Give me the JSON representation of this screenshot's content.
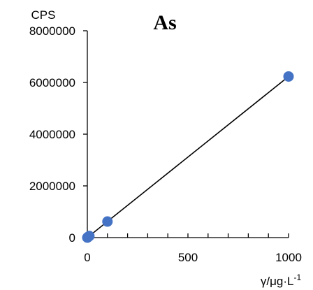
{
  "chart_data": {
    "type": "scatter",
    "title": "As",
    "ylabel": "CPS",
    "xlabel": "γ/μg·L⁻¹",
    "xlabel_parts": {
      "main": "γ/μg·L",
      "sup": "-1"
    },
    "xlim": [
      0,
      1000
    ],
    "ylim": [
      0,
      8000000
    ],
    "xticks": [
      0,
      500,
      1000
    ],
    "xtick_labels": [
      "0",
      "500",
      "1000"
    ],
    "yticks": [
      0,
      2000000,
      4000000,
      6000000,
      8000000
    ],
    "ytick_labels": [
      "0",
      "2000000",
      "4000000",
      "6000000",
      "8000000"
    ],
    "grid": false,
    "series": [
      {
        "points": [
          {
            "x": 0,
            "y": 0
          },
          {
            "x": 1,
            "y": 6000
          },
          {
            "x": 5,
            "y": 31000
          },
          {
            "x": 10,
            "y": 62000
          },
          {
            "x": 100,
            "y": 620000
          },
          {
            "x": 1000,
            "y": 6230000
          }
        ]
      }
    ],
    "trendline": {
      "x": [
        0,
        1000
      ],
      "y": [
        0,
        6230000
      ]
    },
    "colors": {
      "marker": "#4472C4",
      "line": "#000000"
    }
  }
}
